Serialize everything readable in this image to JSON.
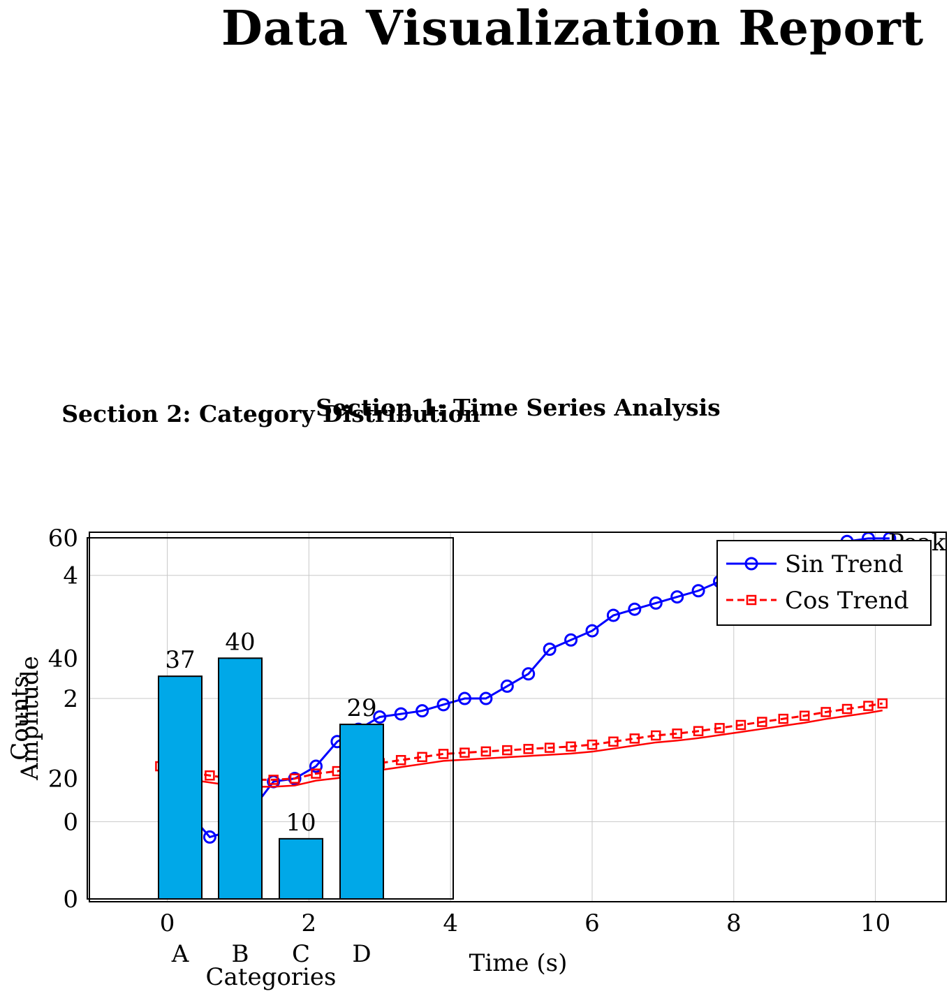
{
  "title": "Data Visualization Report",
  "chart_data": [
    {
      "type": "line",
      "title": "Section 1: Time Series Analysis",
      "xlabel": "Time (s)",
      "ylabel": "Amplitude",
      "xlim": [
        -1.1,
        11
      ],
      "ylim": [
        -1.3,
        4.7
      ],
      "xticks": [
        "0",
        "2",
        "4",
        "6",
        "8",
        "10"
      ],
      "yticks": [
        "0",
        "2",
        "4"
      ],
      "grid": true,
      "legend": "top-right",
      "annotation": "Peak",
      "series": [
        {
          "name": "Sin Trend",
          "color": "#0000ff",
          "marker": "circle",
          "x": [
            0,
            0.3,
            0.6,
            0.9,
            1.2,
            1.5,
            1.8,
            2.1,
            2.4,
            2.7,
            3.0,
            3.3,
            3.6,
            3.9,
            4.2,
            4.5,
            4.8,
            5.1,
            5.4,
            5.7,
            6.0,
            6.3,
            6.6,
            6.9,
            7.2,
            7.5,
            7.8,
            8.1,
            8.4,
            8.7,
            9.0,
            9.3,
            9.6,
            9.9,
            10.2
          ],
          "y": [
            0.55,
            0.15,
            -0.25,
            -0.15,
            0.2,
            0.65,
            0.7,
            0.9,
            1.3,
            1.5,
            1.7,
            1.75,
            1.8,
            1.9,
            2.0,
            2.0,
            2.2,
            2.4,
            2.8,
            2.95,
            3.1,
            3.35,
            3.45,
            3.55,
            3.65,
            3.75,
            3.9,
            4.05,
            4.15,
            4.25,
            4.35,
            4.45,
            4.55,
            4.6,
            4.6
          ]
        },
        {
          "name": "Cos Trend",
          "color": "#ff0000",
          "marker": "square",
          "x": [
            -0.1,
            0.3,
            0.6,
            0.9,
            1.2,
            1.5,
            1.8,
            2.1,
            2.4,
            2.7,
            3.0,
            3.3,
            3.6,
            3.9,
            4.2,
            4.5,
            4.8,
            5.1,
            5.4,
            5.7,
            6.0,
            6.3,
            6.6,
            6.9,
            7.2,
            7.5,
            7.8,
            8.1,
            8.4,
            8.7,
            9.0,
            9.3,
            9.6,
            9.9,
            10.1
          ],
          "y": [
            0.9,
            0.8,
            0.75,
            0.7,
            0.68,
            0.68,
            0.7,
            0.78,
            0.82,
            0.88,
            0.95,
            1.0,
            1.05,
            1.1,
            1.12,
            1.14,
            1.16,
            1.18,
            1.2,
            1.22,
            1.25,
            1.3,
            1.35,
            1.4,
            1.43,
            1.47,
            1.52,
            1.57,
            1.62,
            1.67,
            1.72,
            1.78,
            1.83,
            1.88,
            1.92
          ]
        }
      ]
    },
    {
      "type": "bar",
      "title": "Section 2: Category Distribution",
      "xlabel": "Categories",
      "ylabel": "Counts",
      "categories": [
        "A",
        "B",
        "C",
        "D"
      ],
      "values": [
        37,
        40,
        10,
        29
      ],
      "color": "#00a8e8",
      "ylim": [
        0,
        60
      ],
      "yticks": [
        "0",
        "20",
        "40",
        "60"
      ]
    }
  ]
}
